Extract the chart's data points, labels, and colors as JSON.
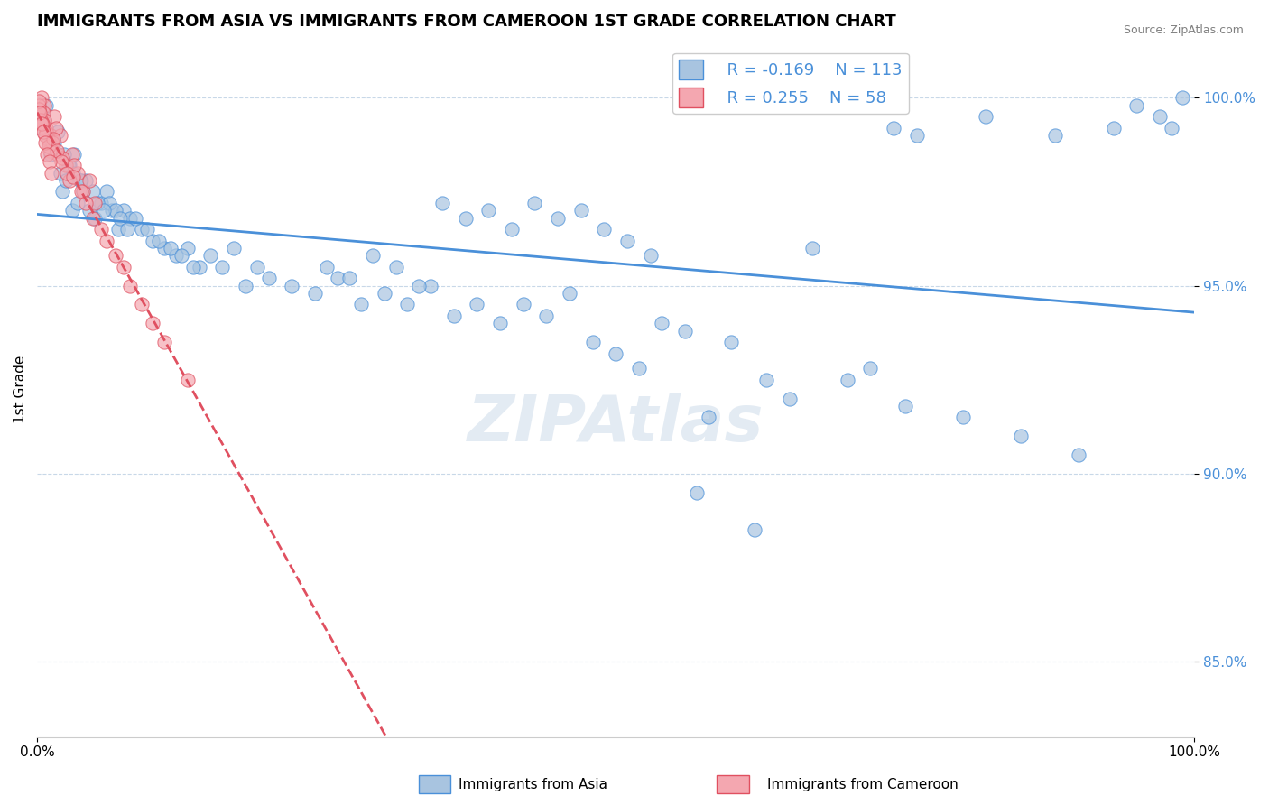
{
  "title": "IMMIGRANTS FROM ASIA VS IMMIGRANTS FROM CAMEROON 1ST GRADE CORRELATION CHART",
  "source_text": "Source: ZipAtlas.com",
  "xlabel": "",
  "ylabel": "1st Grade",
  "watermark": "ZIPAtlas",
  "x_min": 0.0,
  "x_max": 100.0,
  "y_min": 83.0,
  "y_max": 101.5,
  "y_ticks": [
    85.0,
    90.0,
    95.0,
    100.0
  ],
  "y_tick_labels": [
    "85.0%",
    "90.0%",
    "95.0%",
    "100.0%"
  ],
  "x_ticks": [
    0.0,
    100.0
  ],
  "x_tick_labels": [
    "0.0%",
    "100.0%"
  ],
  "blue_color": "#a8c4e0",
  "pink_color": "#f4a7b0",
  "blue_line_color": "#4a90d9",
  "pink_line_color": "#e05060",
  "legend_r_blue": "-0.169",
  "legend_n_blue": "113",
  "legend_r_pink": "0.255",
  "legend_n_pink": "58",
  "legend_label_blue": "Immigrants from Asia",
  "legend_label_pink": "Immigrants from Cameroon",
  "blue_R": -0.169,
  "blue_N": 113,
  "pink_R": 0.255,
  "pink_N": 58,
  "blue_scatter_x": [
    0.3,
    0.5,
    0.8,
    1.0,
    1.2,
    1.5,
    1.8,
    2.0,
    2.2,
    2.5,
    2.8,
    3.0,
    3.2,
    3.5,
    3.8,
    4.0,
    4.5,
    5.0,
    5.5,
    6.0,
    6.5,
    7.0,
    7.5,
    8.0,
    9.0,
    10.0,
    11.0,
    12.0,
    13.0,
    14.0,
    15.0,
    16.0,
    17.0,
    18.0,
    19.0,
    20.0,
    22.0,
    24.0,
    26.0,
    28.0,
    30.0,
    32.0,
    34.0,
    36.0,
    38.0,
    40.0,
    42.0,
    44.0,
    46.0,
    48.0,
    50.0,
    52.0,
    54.0,
    56.0,
    58.0,
    60.0,
    65.0,
    70.0,
    75.0,
    80.0,
    85.0,
    90.0,
    95.0,
    97.0,
    98.0,
    99.0,
    72.0,
    74.0,
    76.0,
    82.0,
    88.0,
    93.0,
    63.0,
    67.0,
    35.0,
    37.0,
    39.0,
    41.0,
    43.0,
    45.0,
    47.0,
    49.0,
    51.0,
    53.0,
    25.0,
    27.0,
    29.0,
    31.0,
    33.0,
    8.5,
    9.5,
    10.5,
    11.5,
    12.5,
    13.5,
    6.2,
    6.8,
    7.2,
    7.8,
    4.2,
    4.8,
    5.2,
    5.8,
    2.3,
    2.7,
    3.1,
    3.7,
    57.0,
    62.0
  ],
  "blue_scatter_y": [
    99.2,
    99.5,
    99.8,
    99.0,
    98.5,
    98.8,
    99.1,
    98.0,
    97.5,
    97.8,
    98.2,
    97.0,
    98.5,
    97.2,
    97.8,
    97.5,
    97.0,
    96.8,
    97.2,
    97.5,
    97.0,
    96.5,
    97.0,
    96.8,
    96.5,
    96.2,
    96.0,
    95.8,
    96.0,
    95.5,
    95.8,
    95.5,
    96.0,
    95.0,
    95.5,
    95.2,
    95.0,
    94.8,
    95.2,
    94.5,
    94.8,
    94.5,
    95.0,
    94.2,
    94.5,
    94.0,
    94.5,
    94.2,
    94.8,
    93.5,
    93.2,
    92.8,
    94.0,
    93.8,
    91.5,
    93.5,
    92.0,
    92.5,
    91.8,
    91.5,
    91.0,
    90.5,
    99.8,
    99.5,
    99.2,
    100.0,
    92.8,
    99.2,
    99.0,
    99.5,
    99.0,
    99.2,
    92.5,
    96.0,
    97.2,
    96.8,
    97.0,
    96.5,
    97.2,
    96.8,
    97.0,
    96.5,
    96.2,
    95.8,
    95.5,
    95.2,
    95.8,
    95.5,
    95.0,
    96.8,
    96.5,
    96.2,
    96.0,
    95.8,
    95.5,
    97.2,
    97.0,
    96.8,
    96.5,
    97.8,
    97.5,
    97.2,
    97.0,
    98.5,
    98.2,
    98.0,
    97.8,
    89.5,
    88.5
  ],
  "pink_scatter_x": [
    0.2,
    0.4,
    0.6,
    0.8,
    1.0,
    1.2,
    1.5,
    1.8,
    2.0,
    2.5,
    3.0,
    3.5,
    4.0,
    4.5,
    5.0,
    0.15,
    0.25,
    0.35,
    0.55,
    0.65,
    0.75,
    0.9,
    1.1,
    1.3,
    1.6,
    2.2,
    2.8,
    3.2,
    0.18,
    0.28,
    0.45,
    0.72,
    1.02,
    1.4,
    1.7,
    2.1,
    2.6,
    3.1,
    3.8,
    4.2,
    4.8,
    5.5,
    6.0,
    6.8,
    7.5,
    8.0,
    9.0,
    10.0,
    11.0,
    13.0,
    0.12,
    0.22,
    0.38,
    0.52,
    0.68,
    0.85,
    1.05,
    1.25
  ],
  "pink_scatter_y": [
    99.5,
    100.0,
    99.8,
    99.2,
    98.8,
    99.0,
    99.5,
    98.5,
    99.0,
    98.2,
    98.5,
    98.0,
    97.5,
    97.8,
    97.2,
    99.8,
    99.5,
    99.2,
    99.6,
    99.4,
    99.1,
    98.9,
    98.6,
    98.8,
    99.2,
    98.4,
    97.8,
    98.2,
    99.7,
    99.4,
    99.3,
    99.0,
    98.7,
    98.9,
    98.6,
    98.3,
    98.0,
    97.9,
    97.5,
    97.2,
    96.8,
    96.5,
    96.2,
    95.8,
    95.5,
    95.0,
    94.5,
    94.0,
    93.5,
    92.5,
    99.9,
    99.6,
    99.3,
    99.1,
    98.8,
    98.5,
    98.3,
    98.0
  ]
}
